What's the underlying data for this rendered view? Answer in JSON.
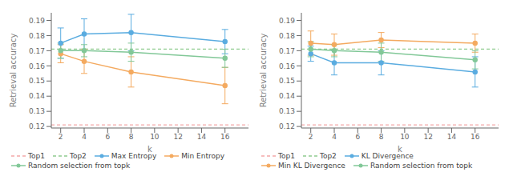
{
  "chart_data": [
    {
      "type": "line",
      "xlabel": "k",
      "ylabel": "Retrieval accuracy",
      "x": [
        2,
        4,
        8,
        16
      ],
      "xlim": [
        1.2,
        18
      ],
      "xticks": [
        2,
        4,
        6,
        8,
        10,
        12,
        14,
        16
      ],
      "ylim": [
        0.119,
        0.195
      ],
      "yticks": [
        0.12,
        0.13,
        0.14,
        0.15,
        0.16,
        0.17,
        0.18,
        0.19
      ],
      "grid": false,
      "legend": "lower left",
      "series": [
        {
          "name": "Top1",
          "type": "hline",
          "value": 0.121,
          "color": "#f4a8a8",
          "line_style": "dashed"
        },
        {
          "name": "Top2",
          "type": "hline",
          "value": 0.171,
          "color": "#90cc90",
          "line_style": "dashed"
        },
        {
          "name": "Max Entropy",
          "type": "line",
          "color": "#5aace0",
          "marker": "circle",
          "line_style": "solid",
          "values": [
            0.175,
            0.181,
            0.182,
            0.176
          ],
          "errors": [
            0.01,
            0.01,
            0.012,
            0.008
          ]
        },
        {
          "name": "Min Entropy",
          "type": "line",
          "color": "#f4aa60",
          "marker": "circle",
          "line_style": "solid",
          "values": [
            0.168,
            0.163,
            0.156,
            0.147
          ],
          "errors": [
            0.006,
            0.008,
            0.01,
            0.012
          ]
        },
        {
          "name": "Random selection from topk",
          "type": "line",
          "color": "#82c898",
          "marker": "circle",
          "line_style": "solid",
          "values": [
            0.17,
            0.17,
            0.169,
            0.165
          ],
          "errors": [
            0.005,
            0.004,
            0.006,
            0.006
          ]
        }
      ]
    },
    {
      "type": "line",
      "xlabel": "k",
      "ylabel": "Retrieval accuracy",
      "x": [
        2,
        4,
        8,
        16
      ],
      "xlim": [
        1.2,
        18
      ],
      "xticks": [
        2,
        4,
        6,
        8,
        10,
        12,
        14,
        16
      ],
      "ylim": [
        0.119,
        0.195
      ],
      "yticks": [
        0.12,
        0.13,
        0.14,
        0.15,
        0.16,
        0.17,
        0.18,
        0.19
      ],
      "grid": false,
      "legend": "lower left",
      "series": [
        {
          "name": "Top1",
          "type": "hline",
          "value": 0.121,
          "color": "#f4a8a8",
          "line_style": "dashed"
        },
        {
          "name": "Top2",
          "type": "hline",
          "value": 0.171,
          "color": "#90cc90",
          "line_style": "dashed"
        },
        {
          "name": "KL Divergence",
          "type": "line",
          "color": "#5aace0",
          "marker": "circle",
          "line_style": "solid",
          "values": [
            0.168,
            0.162,
            0.162,
            0.156
          ],
          "errors": [
            0.005,
            0.008,
            0.008,
            0.01
          ]
        },
        {
          "name": "Min KL Divergence",
          "type": "line",
          "color": "#f4aa60",
          "marker": "circle",
          "line_style": "solid",
          "values": [
            0.175,
            0.174,
            0.177,
            0.175
          ],
          "errors": [
            0.008,
            0.007,
            0.005,
            0.006
          ]
        },
        {
          "name": "Random selection from topk",
          "type": "line",
          "color": "#82c898",
          "marker": "circle",
          "line_style": "solid",
          "values": [
            0.171,
            0.17,
            0.169,
            0.164
          ],
          "errors": [
            0.005,
            0.004,
            0.006,
            0.006
          ]
        }
      ]
    }
  ]
}
